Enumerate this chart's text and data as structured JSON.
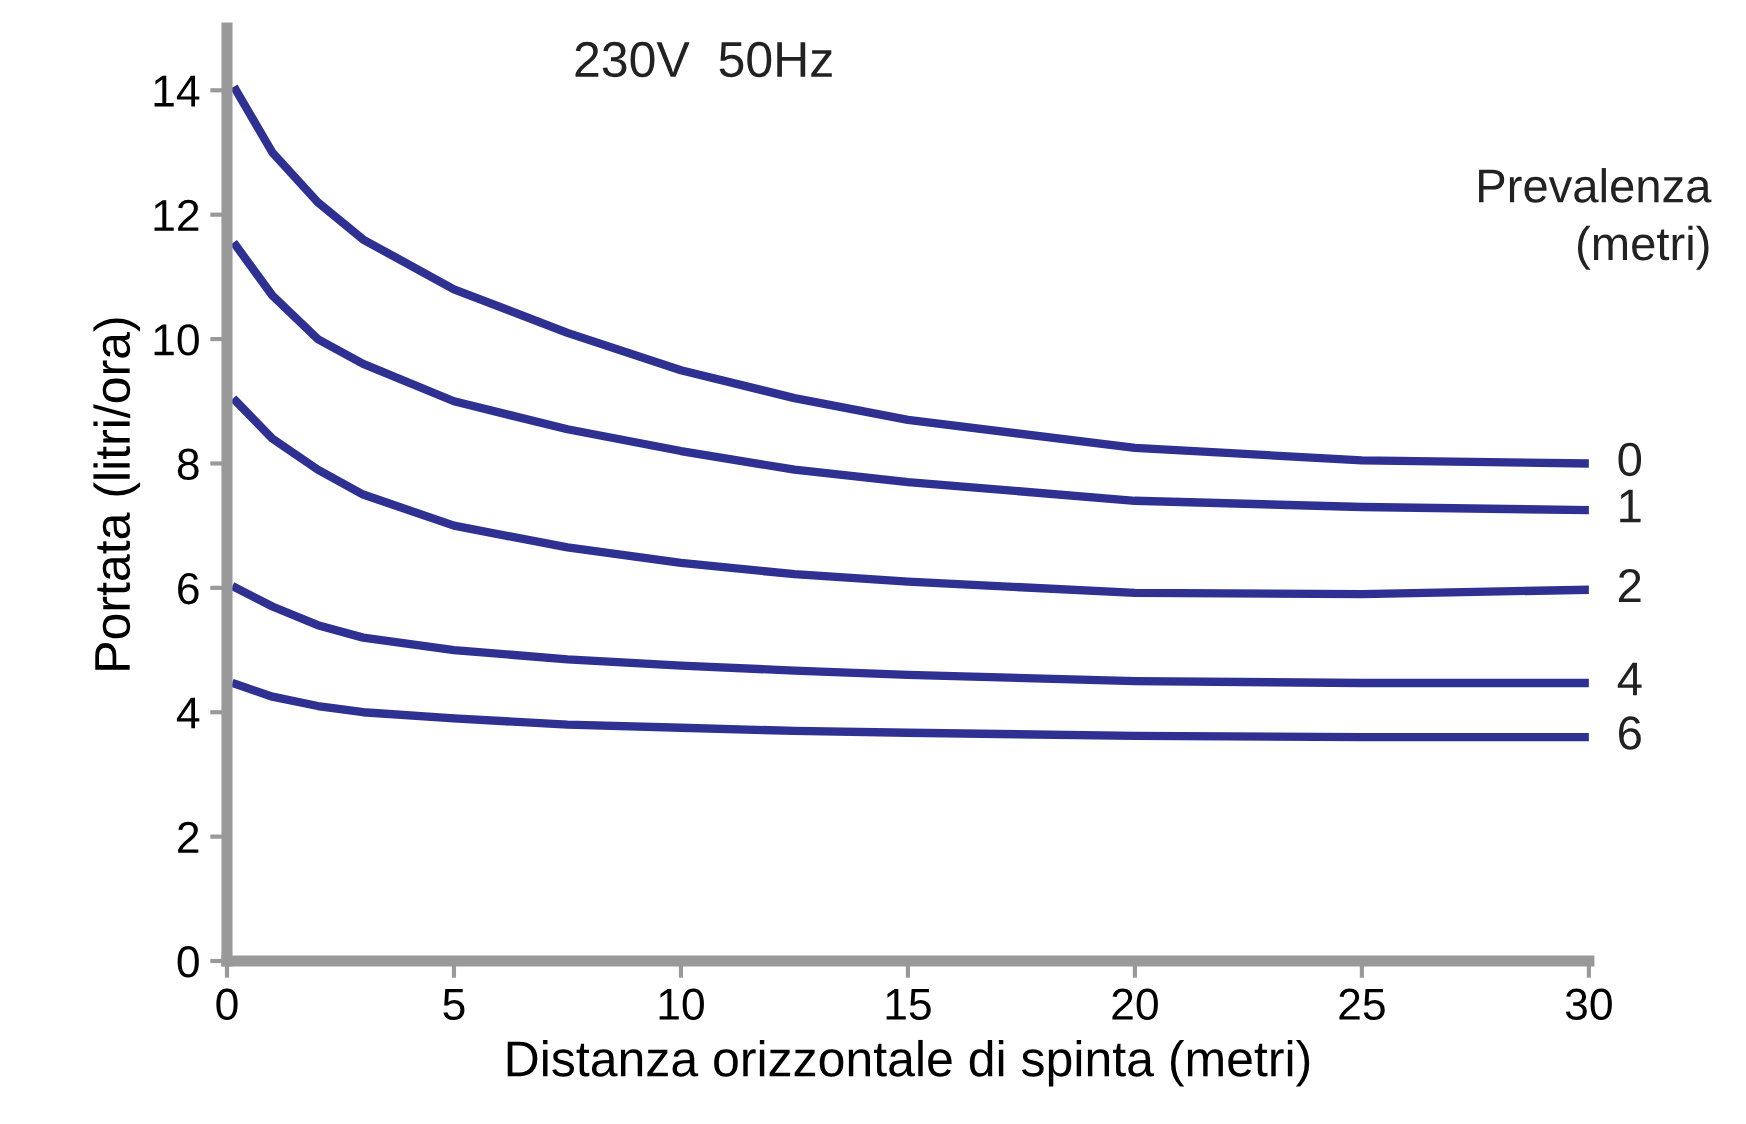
{
  "chart_data": {
    "type": "line",
    "title": "230V  50Hz",
    "xlabel": "Distanza orizzontale di spinta (metri)",
    "ylabel": "Portata (litri/ora)",
    "legend_title": "Prevalenza\n(metri)",
    "x": [
      0.2,
      1,
      2,
      3,
      5,
      7.5,
      10,
      12.5,
      15,
      20,
      25,
      30
    ],
    "series": [
      {
        "name": "0",
        "color": "#2e3192",
        "values": [
          14.0,
          13.0,
          12.2,
          11.6,
          10.8,
          10.1,
          9.5,
          9.05,
          8.7,
          8.25,
          8.05,
          8.0
        ]
      },
      {
        "name": "1",
        "color": "#2e3192",
        "values": [
          11.5,
          10.7,
          10.0,
          9.6,
          9.0,
          8.55,
          8.2,
          7.9,
          7.7,
          7.4,
          7.3,
          7.25
        ]
      },
      {
        "name": "2",
        "color": "#2e3192",
        "values": [
          9.0,
          8.4,
          7.9,
          7.5,
          7.0,
          6.65,
          6.4,
          6.22,
          6.1,
          5.92,
          5.9,
          5.97
        ]
      },
      {
        "name": "4",
        "color": "#2e3192",
        "values": [
          6.0,
          5.7,
          5.4,
          5.2,
          5.0,
          4.85,
          4.75,
          4.67,
          4.6,
          4.5,
          4.47,
          4.47
        ]
      },
      {
        "name": "6",
        "color": "#2e3192",
        "values": [
          4.45,
          4.25,
          4.1,
          4.0,
          3.9,
          3.8,
          3.75,
          3.7,
          3.67,
          3.62,
          3.6,
          3.6
        ]
      }
    ],
    "xlim": [
      0,
      30
    ],
    "xticks": [
      0,
      5,
      10,
      15,
      20,
      25,
      30
    ],
    "ylim": [
      0,
      15
    ],
    "yticks": [
      0,
      2,
      4,
      6,
      8,
      10,
      12,
      14
    ],
    "grid": false,
    "legend": false,
    "marker": "none",
    "line_style": "solid"
  }
}
